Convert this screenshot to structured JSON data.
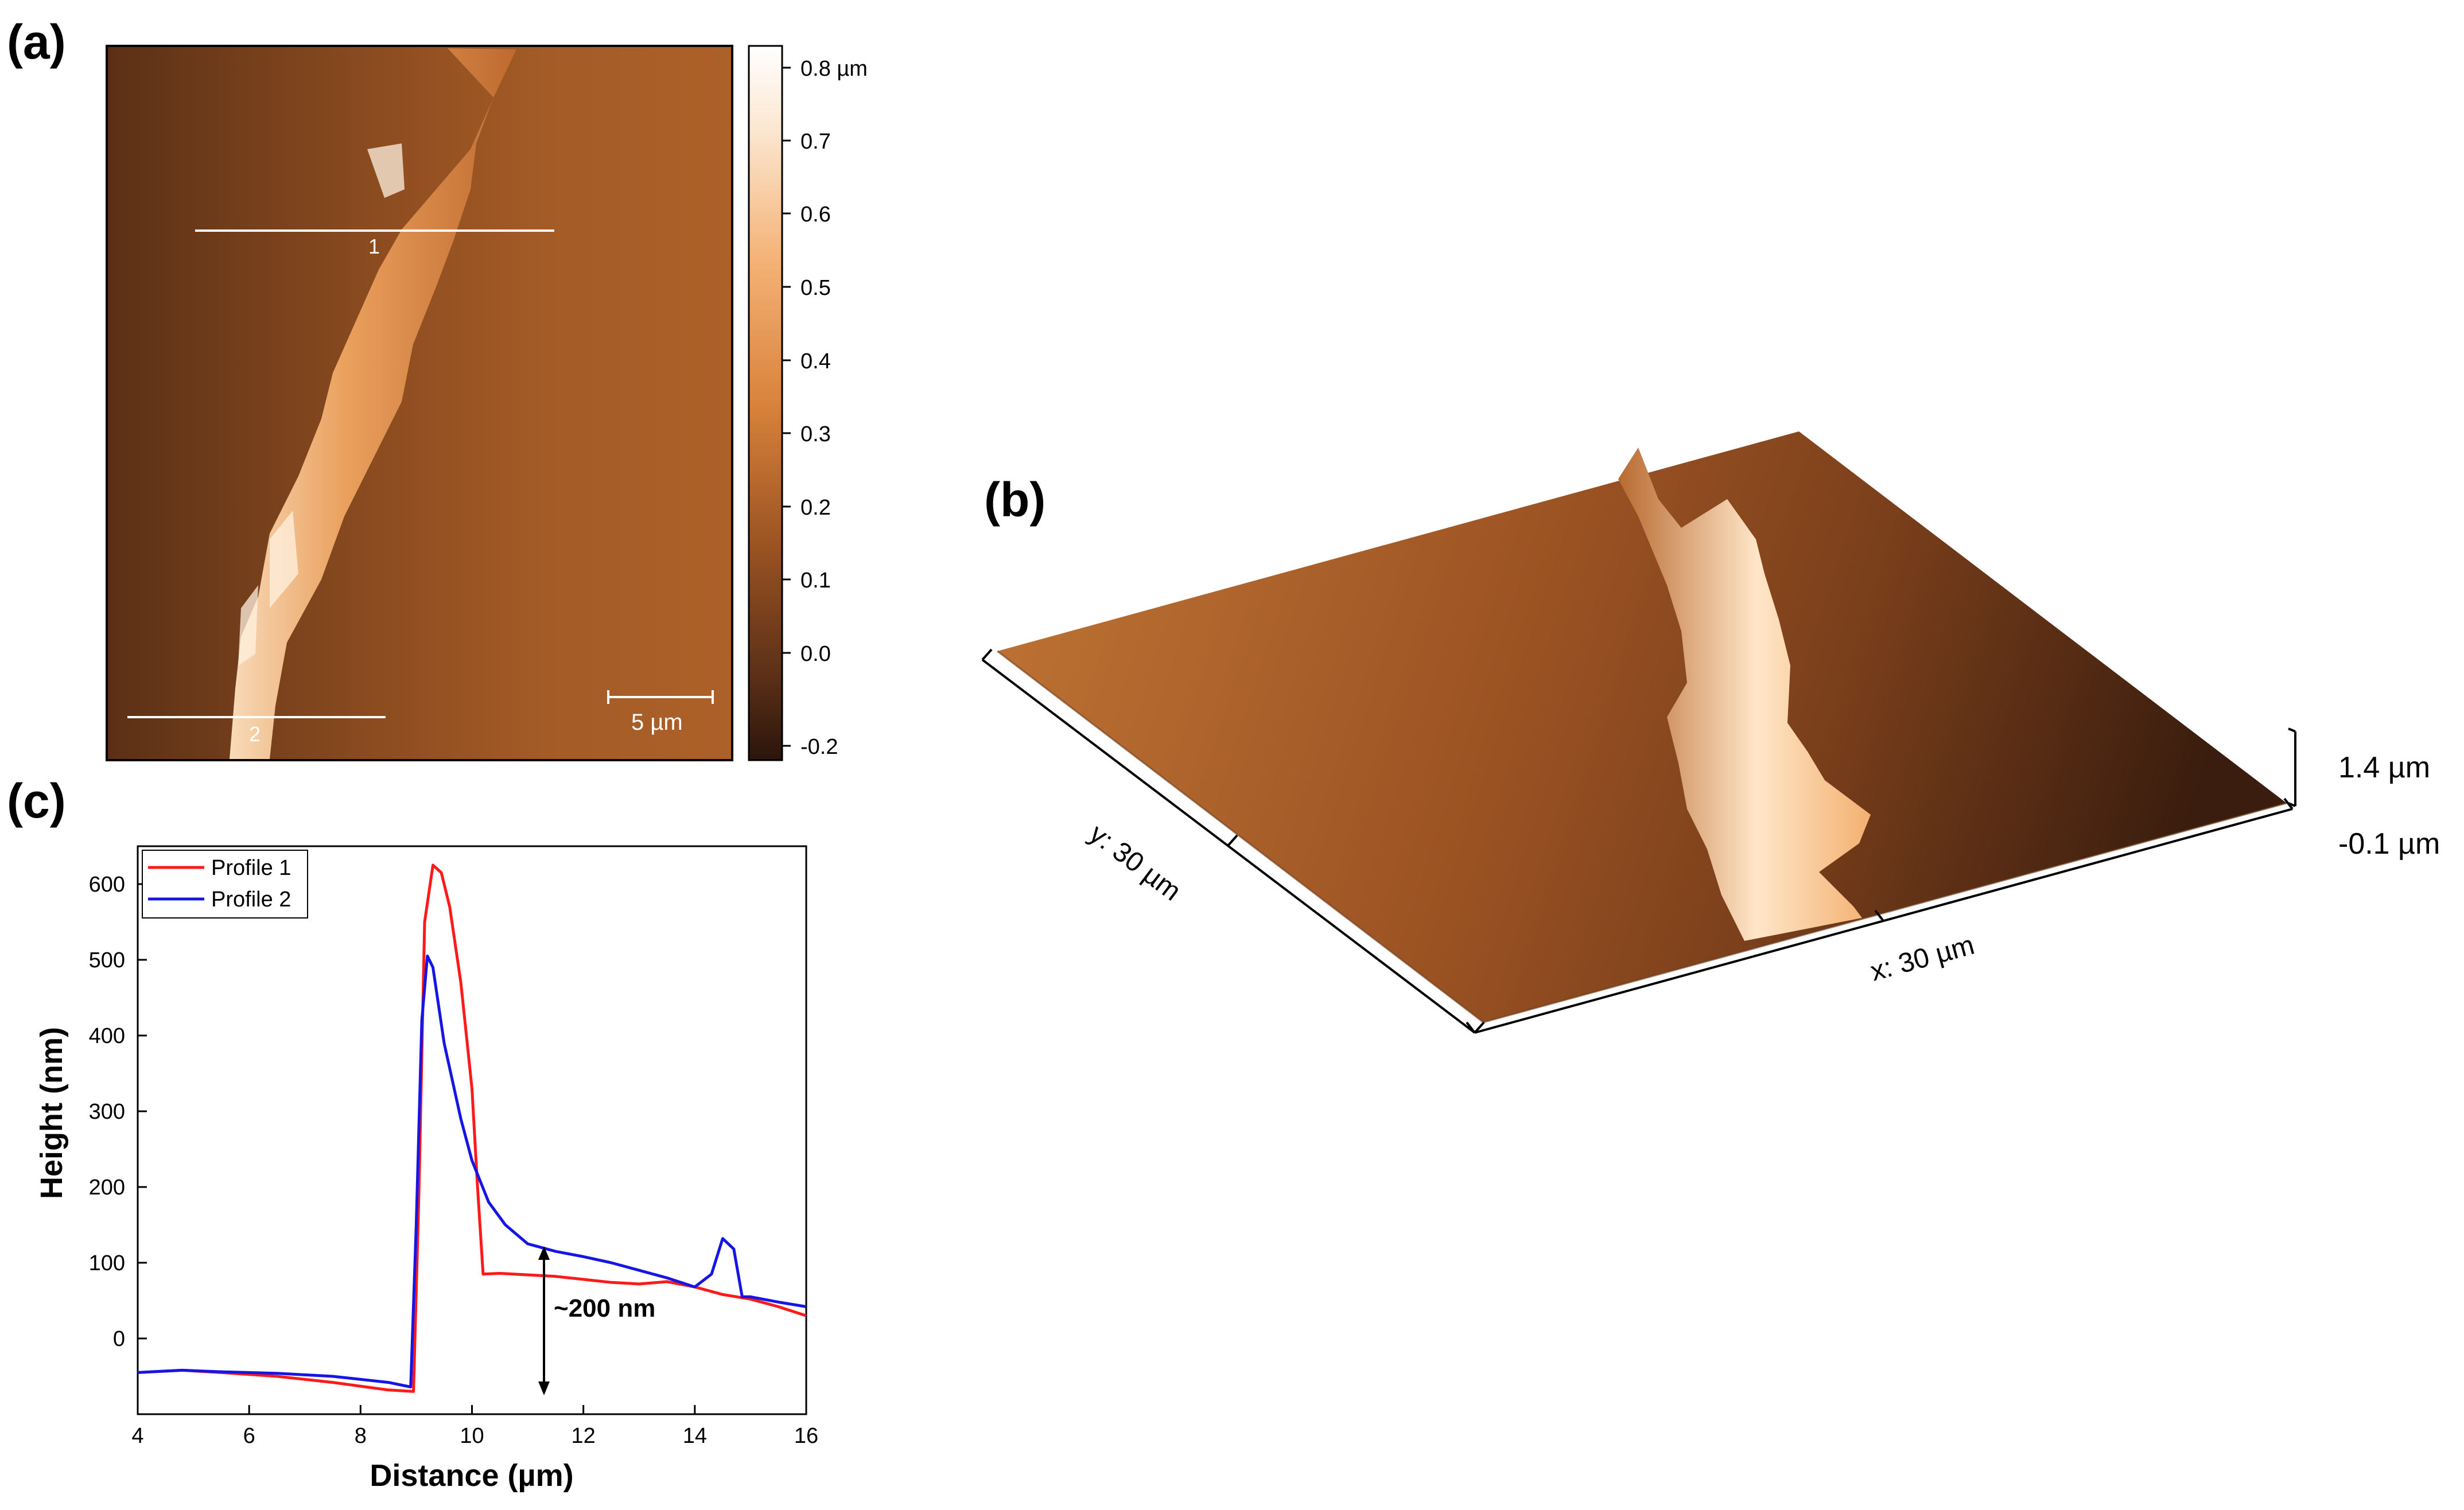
{
  "panel_labels": {
    "a": "(a)",
    "b": "(b)",
    "c": "(c)"
  },
  "panel_a": {
    "colorbar_ticks": [
      "0.8 µm",
      "0.7",
      "0.6",
      "0.5",
      "0.4",
      "0.3",
      "0.2",
      "0.1",
      "0.0",
      "-0.2"
    ],
    "scale_bar": "5 µm",
    "line_labels": [
      "1",
      "2"
    ]
  },
  "panel_b": {
    "axis_x": "x: 30 µm",
    "axis_y": "y: 30 µm",
    "z_max": "1.4 µm",
    "z_min": "-0.1 µm"
  },
  "chart_data": {
    "type": "line",
    "xlabel": "Distance (µm)",
    "ylabel": "Height (nm)",
    "xlim": [
      4,
      16
    ],
    "ylim": [
      -100,
      650
    ],
    "xticks": [
      "4",
      "6",
      "8",
      "10",
      "12",
      "14",
      "16"
    ],
    "yticks": [
      "0",
      "100",
      "200",
      "300",
      "400",
      "500",
      "600"
    ],
    "legend": "top-left",
    "annotation": "~200 nm",
    "series": [
      {
        "name": "Profile 1",
        "color": "#ff1a1a",
        "x": [
          4.0,
          4.8,
          5.5,
          6.5,
          7.5,
          8.5,
          8.95,
          9.05,
          9.15,
          9.3,
          9.45,
          9.6,
          9.8,
          10.0,
          10.1,
          10.2,
          10.5,
          11.0,
          11.5,
          12.0,
          12.5,
          13.0,
          13.5,
          14.0,
          14.5,
          15.0,
          15.5,
          16.0
        ],
        "y": [
          -45,
          -42,
          -45,
          -50,
          -58,
          -68,
          -70,
          200,
          550,
          625,
          615,
          570,
          470,
          330,
          200,
          85,
          86,
          84,
          82,
          78,
          74,
          72,
          75,
          68,
          58,
          52,
          42,
          30
        ]
      },
      {
        "name": "Profile 2",
        "color": "#1515e6",
        "x": [
          4.0,
          4.8,
          5.5,
          6.5,
          7.5,
          8.5,
          8.9,
          9.0,
          9.1,
          9.2,
          9.3,
          9.5,
          9.8,
          10.0,
          10.3,
          10.6,
          11.0,
          11.5,
          12.0,
          12.5,
          13.0,
          13.5,
          14.0,
          14.3,
          14.5,
          14.7,
          14.85,
          15.0,
          15.5,
          16.0
        ],
        "y": [
          -45,
          -42,
          -44,
          -46,
          -50,
          -58,
          -64,
          150,
          420,
          505,
          490,
          390,
          290,
          235,
          180,
          150,
          125,
          115,
          108,
          100,
          90,
          80,
          68,
          85,
          132,
          118,
          55,
          55,
          48,
          42
        ]
      }
    ]
  }
}
